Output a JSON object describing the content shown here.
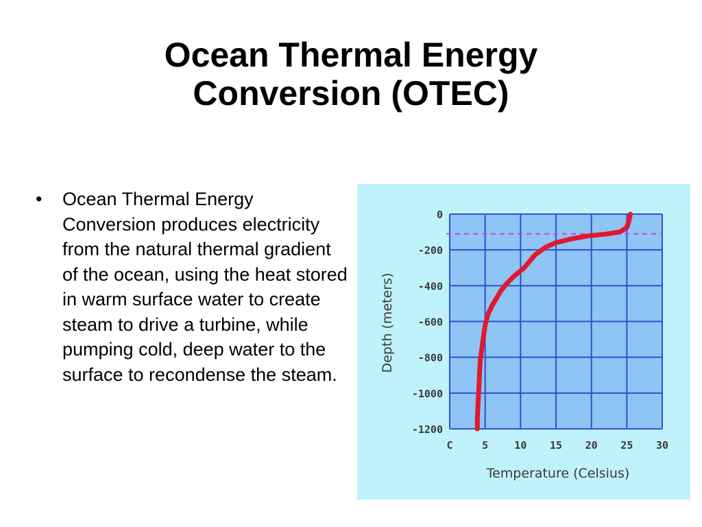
{
  "slide": {
    "title_line1": "Ocean Thermal Energy",
    "title_line2": "Conversion (OTEC)",
    "bullet_symbol": "•",
    "bullet_text": "Ocean Thermal Energy Conversion produces electricity from the natural thermal gradient of the ocean, using the heat stored in warm surface water to create steam to drive a turbine, while pumping cold, deep water to the surface to recondense the steam."
  },
  "chart_data": {
    "type": "line",
    "title": "",
    "xlabel": "Temperature (Celsius)",
    "ylabel": "Depth (meters)",
    "xlim": [
      0,
      30
    ],
    "ylim": [
      -1200,
      0
    ],
    "x_ticks": [
      0,
      5,
      10,
      15,
      20,
      25,
      30
    ],
    "x_tick_labels": [
      "C",
      "5",
      "10",
      "15",
      "20",
      "25",
      "30"
    ],
    "y_ticks": [
      0,
      -200,
      -400,
      -600,
      -800,
      -1000,
      -1200
    ],
    "y_tick_labels": [
      "0",
      "-200",
      "-400",
      "-600",
      "-800",
      "-1000",
      "-1200"
    ],
    "grid": true,
    "reference_line": {
      "y": -110,
      "style": "dashed"
    },
    "series": [
      {
        "x": [
          25.5,
          25.3,
          25.0,
          24.0,
          22.0,
          19.5,
          17.0,
          15.0,
          13.5,
          12.0,
          10.5,
          9.0,
          8.0,
          7.2,
          6.6,
          6.0,
          5.4,
          5.0,
          4.7,
          4.5,
          4.3,
          4.2,
          4.1,
          4.0,
          3.9,
          3.9
        ],
        "y": [
          0,
          -40,
          -75,
          -100,
          -112,
          -122,
          -140,
          -160,
          -185,
          -230,
          -300,
          -350,
          -390,
          -430,
          -470,
          -510,
          -560,
          -620,
          -700,
          -760,
          -820,
          -900,
          -980,
          -1060,
          -1140,
          -1200
        ]
      }
    ],
    "colors": {
      "background": "#bff2fa",
      "plot_area": "#8ec5f5",
      "grid": "#2f4fd0",
      "series": "#e0192e",
      "reference_line": "#d040d0"
    }
  }
}
